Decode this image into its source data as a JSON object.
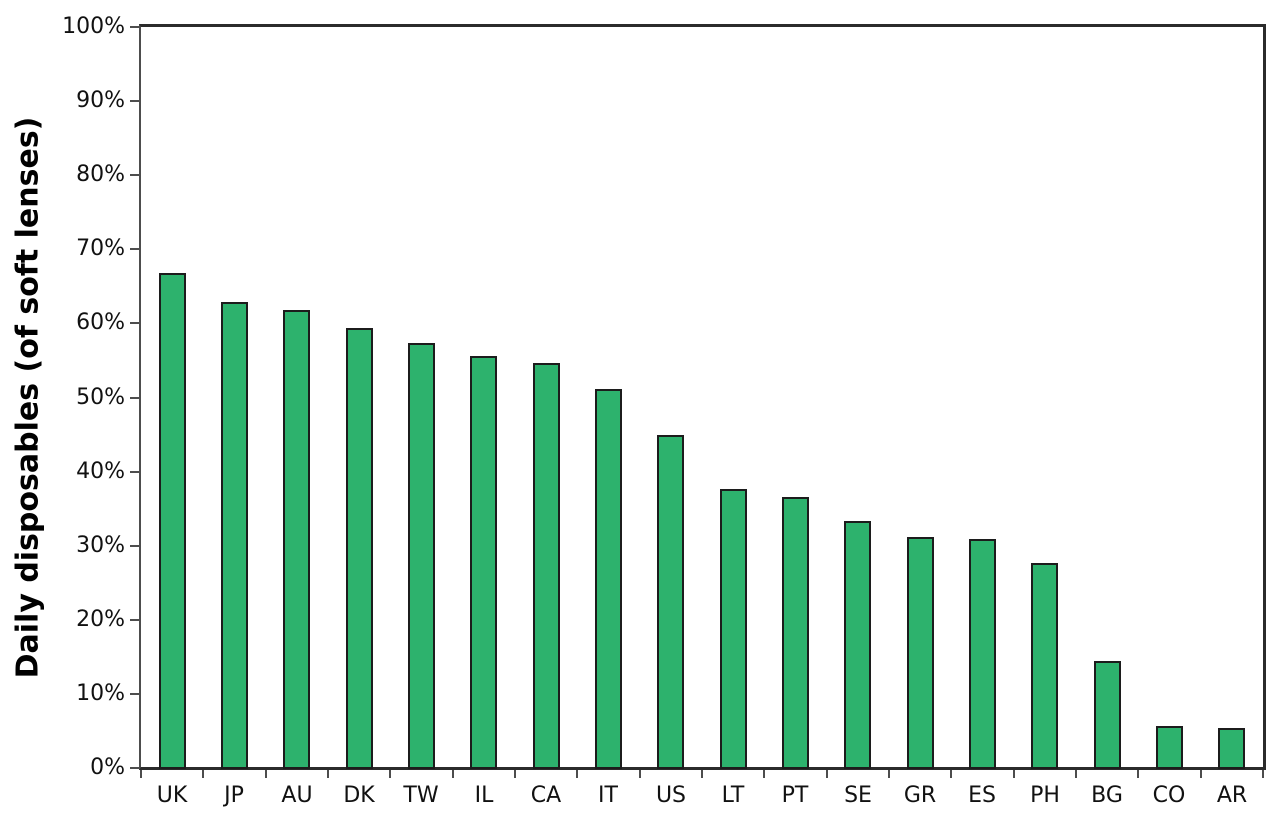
{
  "chart_data": {
    "type": "bar",
    "title": "",
    "xlabel": "",
    "ylabel": "Daily disposables (of soft lenses)",
    "categories": [
      "UK",
      "JP",
      "AU",
      "DK",
      "TW",
      "IL",
      "CA",
      "IT",
      "US",
      "LT",
      "PT",
      "SE",
      "GR",
      "ES",
      "PH",
      "BG",
      "CO",
      "AR"
    ],
    "values": [
      66.8,
      62.9,
      61.8,
      59.4,
      57.3,
      55.6,
      54.7,
      51.1,
      44.9,
      37.7,
      36.6,
      33.4,
      31.2,
      30.9,
      27.6,
      14.5,
      5.7,
      5.4
    ],
    "ylim": [
      0,
      100
    ],
    "ytick_step": 10,
    "ytick_labels": [
      "0%",
      "10%",
      "20%",
      "30%",
      "40%",
      "50%",
      "60%",
      "70%",
      "80%",
      "90%",
      "100%"
    ],
    "grid": false,
    "legend": "none",
    "bar_color": "#2db26d",
    "bar_border_color": "#1c1c1c",
    "axis_color": "#4d4d4d",
    "frame_color": "#2b2b2b",
    "text_color": "#111111"
  }
}
